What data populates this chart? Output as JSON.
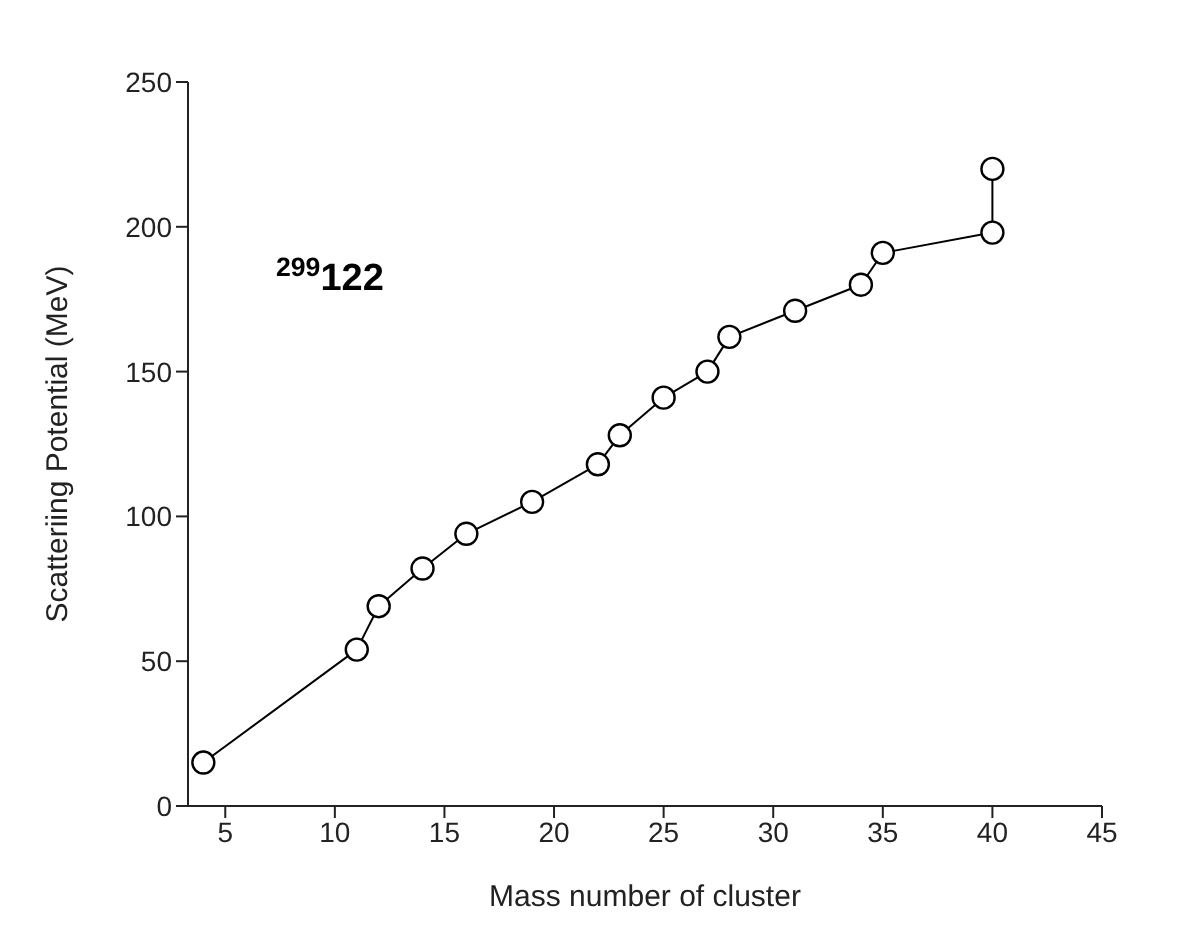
{
  "chart_data": {
    "type": "line",
    "xlabel": "Mass number of cluster",
    "ylabel": "Scatteriing Potential (MeV)",
    "annotations": [
      "$^{299}$122"
    ],
    "x": [
      4,
      11,
      12,
      14,
      16,
      19,
      22,
      23,
      25,
      27,
      28,
      31,
      34,
      35,
      40,
      40
    ],
    "series": [
      {
        "color": "#000000",
        "values": [
          15,
          54,
          69,
          82,
          94,
          105,
          118,
          128,
          141,
          150,
          162,
          171,
          180,
          191,
          198,
          220
        ]
      }
    ],
    "xlim": [
      3.3,
      45
    ],
    "xticks": [
      5,
      10,
      15,
      20,
      25,
      30,
      35,
      40,
      45
    ],
    "ylim": [
      0,
      250
    ],
    "yticks": [
      0,
      50,
      100,
      150,
      200,
      250
    ],
    "grid": false,
    "legend": false,
    "marker": "circle",
    "line_style": "solid"
  }
}
